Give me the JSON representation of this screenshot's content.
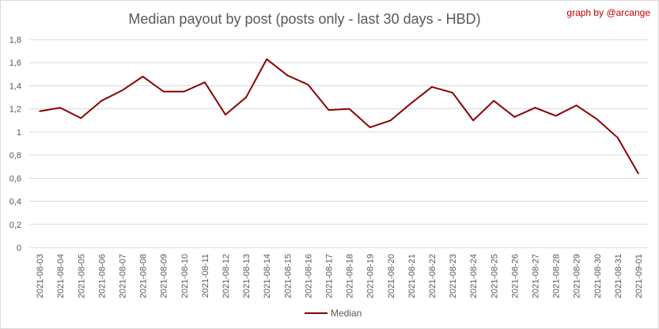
{
  "chart_data": {
    "type": "line",
    "title": "Median payout by post (posts only - last 30 days - HBD)",
    "credit": "graph by @arcange",
    "xlabel": "",
    "ylabel": "",
    "ylim": [
      0,
      1.8
    ],
    "yticks": [
      "0",
      "0,2",
      "0,4",
      "0,6",
      "0,8",
      "1",
      "1,2",
      "1,4",
      "1,6",
      "1,8"
    ],
    "grid": true,
    "legend_position": "bottom",
    "categories": [
      "2021-08-03",
      "2021-08-04",
      "2021-08-05",
      "2021-08-06",
      "2021-08-07",
      "2021-08-08",
      "2021-08-09",
      "2021-08-10",
      "2021-08-11",
      "2021-08-12",
      "2021-08-13",
      "2021-08-14",
      "2021-08-15",
      "2021-08-16",
      "2021-08-17",
      "2021-08-18",
      "2021-08-19",
      "2021-08-20",
      "2021-08-21",
      "2021-08-22",
      "2021-08-23",
      "2021-08-24",
      "2021-08-25",
      "2021-08-26",
      "2021-08-27",
      "2021-08-28",
      "2021-08-29",
      "2021-08-30",
      "2021-08-31",
      "2021-09-01"
    ],
    "series": [
      {
        "name": "Median",
        "color": "#8b0000",
        "values": [
          1.18,
          1.21,
          1.12,
          1.27,
          1.36,
          1.48,
          1.35,
          1.35,
          1.43,
          1.15,
          1.3,
          1.63,
          1.49,
          1.41,
          1.19,
          1.2,
          1.04,
          1.1,
          1.25,
          1.39,
          1.34,
          1.1,
          1.27,
          1.13,
          1.21,
          1.14,
          1.23,
          1.11,
          0.95,
          0.64
        ]
      }
    ]
  }
}
